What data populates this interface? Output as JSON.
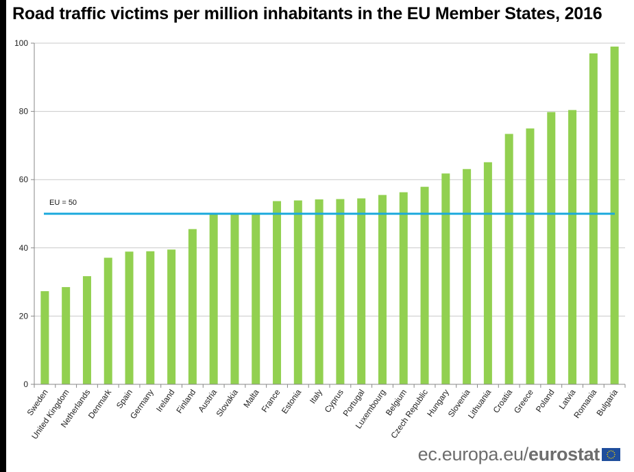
{
  "title": "Road traffic victims per million inhabitants in the EU Member States, 2016",
  "footer": {
    "url_prefix": "ec.europa.eu/",
    "brand": "eurostat",
    "logo_icon": "eu-flag-icon"
  },
  "colors": {
    "bar": "#92d050",
    "reference_line": "#1aa9dc",
    "grid": "#c8c8c8",
    "axis": "#878787"
  },
  "chart_data": {
    "type": "bar",
    "title": "Road traffic victims per million inhabitants in the EU Member States, 2016",
    "xlabel": "",
    "ylabel": "",
    "ylim": [
      0,
      100
    ],
    "yticks": [
      0,
      20,
      40,
      60,
      80,
      100
    ],
    "grid": true,
    "categories": [
      "Sweden",
      "United Kingdom",
      "Netherlands",
      "Denmark",
      "Spain",
      "Germany",
      "Ireland",
      "Finland",
      "Austria",
      "Slovakia",
      "Malta",
      "France",
      "Estonia",
      "Italy",
      "Cyprus",
      "Portugal",
      "Luxembourg",
      "Belgium",
      "Czech Republic",
      "Hungary",
      "Slovenia",
      "Lithuania",
      "Croatia",
      "Greece",
      "Poland",
      "Latvia",
      "Romania",
      "Bulgaria"
    ],
    "values": [
      27.3,
      28.5,
      31.7,
      37.1,
      38.9,
      39.0,
      39.5,
      45.5,
      49.7,
      50.3,
      50.3,
      53.7,
      53.9,
      54.2,
      54.3,
      54.5,
      55.5,
      56.3,
      57.9,
      61.8,
      63.1,
      65.1,
      73.4,
      75.0,
      79.8,
      80.4,
      97.0,
      99.0
    ],
    "reference_line": {
      "label": "EU = 50",
      "value": 50
    }
  }
}
